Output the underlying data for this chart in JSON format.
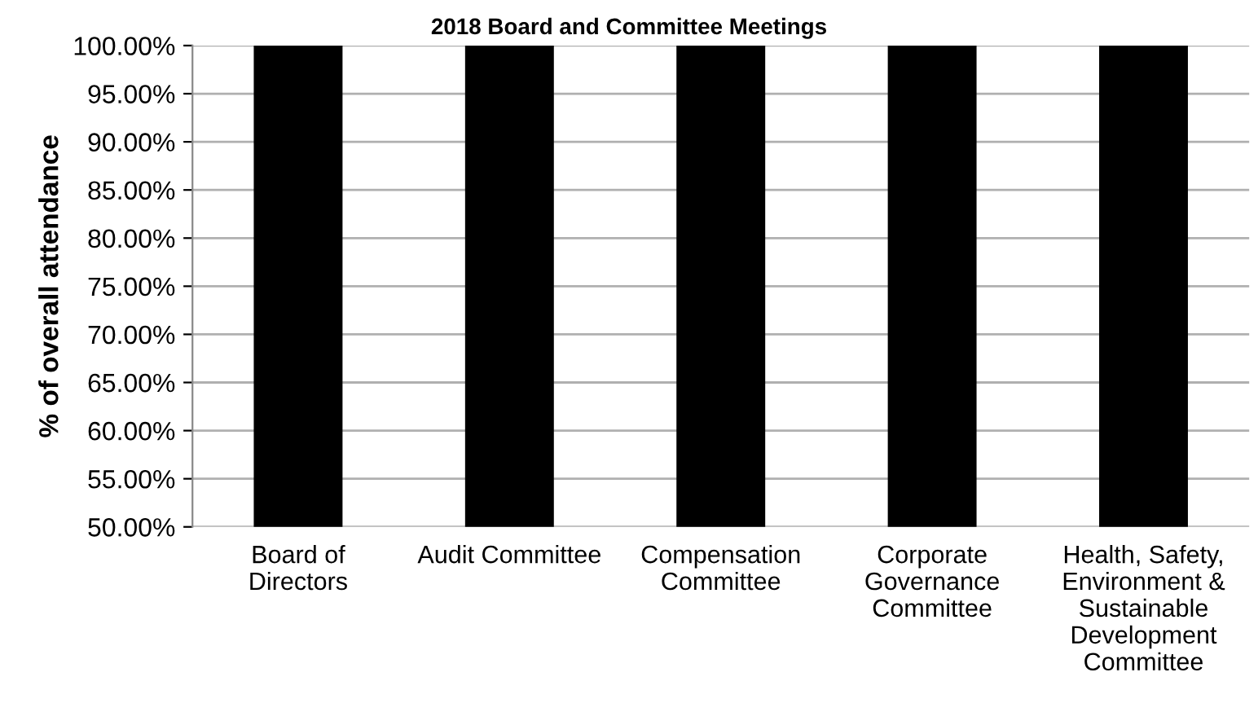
{
  "chart_data": {
    "type": "bar",
    "title": "2018 Board and Committee Meetings",
    "ylabel": "% of overall attendance",
    "categories": [
      "Board of\nDirectors",
      "Audit Committee",
      "Compensation\nCommittee",
      "Corporate\nGovernance\nCommittee",
      "Health, Safety,\nEnvironment &\nSustainable\nDevelopment\nCommittee"
    ],
    "values": [
      100,
      100,
      100,
      100,
      100
    ],
    "color": "#000000",
    "ylim": [
      50,
      100
    ],
    "yticks": [
      {
        "value": 50,
        "label": "50.00%"
      },
      {
        "value": 55,
        "label": "55.00%"
      },
      {
        "value": 60,
        "label": "60.00%"
      },
      {
        "value": 65,
        "label": "65.00%"
      },
      {
        "value": 70,
        "label": "70.00%"
      },
      {
        "value": 75,
        "label": "75.00%"
      },
      {
        "value": 80,
        "label": "80.00%"
      },
      {
        "value": 85,
        "label": "85.00%"
      },
      {
        "value": 90,
        "label": "90.00%"
      },
      {
        "value": 95,
        "label": "95.00%"
      },
      {
        "value": 100,
        "label": "100.00%"
      }
    ],
    "grid": "y"
  }
}
